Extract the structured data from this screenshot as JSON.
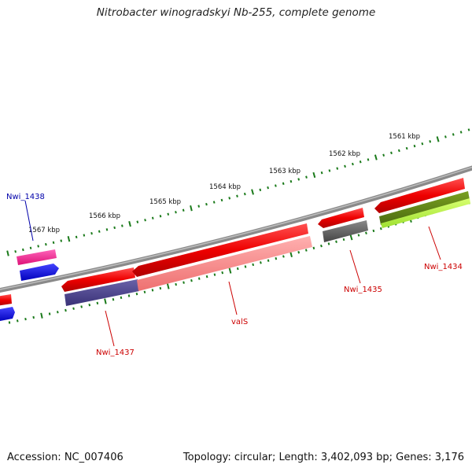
{
  "title": "Nitrobacter winogradskyi Nb-255, complete genome",
  "footer": {
    "accession": "Accession: NC_007406",
    "summary": "Topology: circular; Length: 3,402,093 bp; Genes: 3,176"
  },
  "colors": {
    "backbone": "#8a8a8a",
    "tick": "#1a7a1a",
    "cds": "#ee1111",
    "label_red": "#cc0000",
    "label_blue": "#0000aa"
  },
  "ticks": [
    {
      "label": "1567 kbp"
    },
    {
      "label": "1566 kbp"
    },
    {
      "label": "1565 kbp"
    },
    {
      "label": "1564 kbp"
    },
    {
      "label": "1563 kbp"
    },
    {
      "label": "1562 kbp"
    },
    {
      "label": "1561 kbp"
    }
  ],
  "genes": [
    {
      "name": "Nwi_1438",
      "color": "blue"
    },
    {
      "name": "Nwi_1437",
      "color": "red"
    },
    {
      "name": "valS",
      "color": "red"
    },
    {
      "name": "Nwi_1435",
      "color": "red"
    },
    {
      "name": "Nwi_1434",
      "color": "red"
    }
  ]
}
